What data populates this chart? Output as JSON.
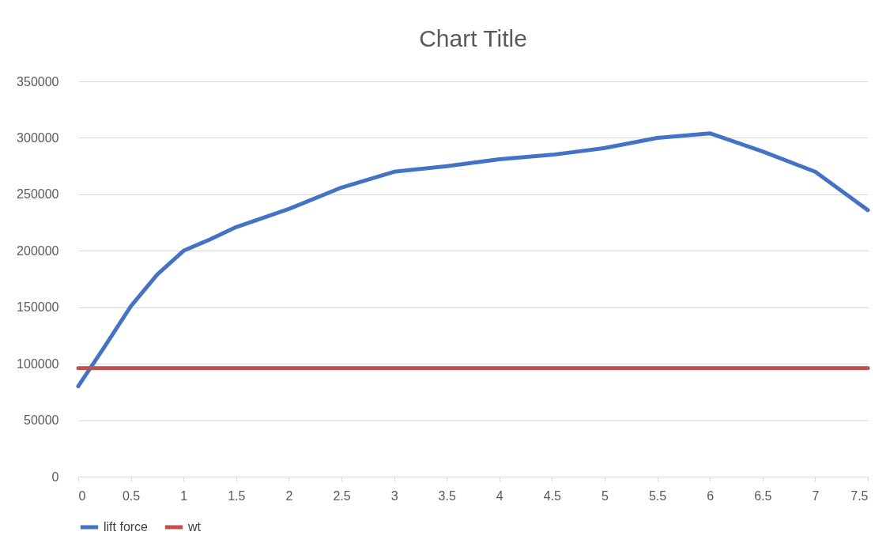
{
  "chart_data": {
    "type": "line",
    "title": "Chart Title",
    "xlim": [
      0,
      7.5
    ],
    "xticks": [
      0,
      0.5,
      1,
      1.5,
      2,
      2.5,
      3,
      3.5,
      4,
      4.5,
      5,
      5.5,
      6,
      6.5,
      7,
      7.5
    ],
    "ylim": [
      0,
      350000
    ],
    "yticks": [
      0,
      50000,
      100000,
      150000,
      200000,
      250000,
      300000,
      350000
    ],
    "grid": "y",
    "legend": "bottom",
    "marker": "none",
    "line_style": "solid",
    "series": [
      {
        "name": "lift force",
        "color": "#4472c4",
        "x": [
          0,
          0.25,
          0.5,
          0.75,
          1,
          1.25,
          1.5,
          2,
          2.5,
          3,
          3.5,
          4,
          4.5,
          5,
          5.5,
          6,
          6.5,
          7,
          7.5
        ],
        "values": [
          80000,
          115000,
          151000,
          179000,
          200000,
          210000,
          221000,
          237000,
          256000,
          270000,
          275000,
          281000,
          285000,
          291000,
          300000,
          304000,
          288000,
          270000,
          236000
        ]
      },
      {
        "name": "wt",
        "color": "#c0504d",
        "x": [
          0,
          7.5
        ],
        "values": [
          96000,
          96000
        ]
      }
    ]
  }
}
